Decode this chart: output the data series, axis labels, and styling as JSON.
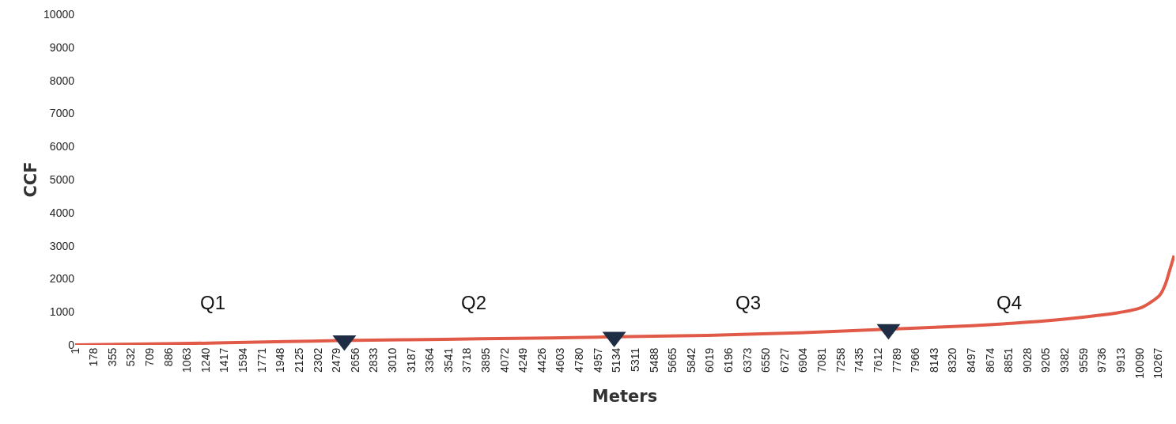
{
  "chart_data": {
    "type": "line",
    "xlabel": "Meters",
    "ylabel": "CCF",
    "series": [
      {
        "color": "#e05a47",
        "x": [
          1,
          1000,
          2000,
          2500,
          3500,
          4500,
          4950,
          6000,
          7000,
          7550,
          8500,
          9000,
          9500,
          9900,
          10100,
          10200,
          10280,
          10330,
          10370,
          10417
        ],
        "values": [
          0,
          40,
          100,
          130,
          170,
          210,
          235,
          290,
          380,
          455,
          580,
          680,
          820,
          980,
          1120,
          1300,
          1500,
          1800,
          2200,
          2700
        ]
      },
      {
        "type": "scatter",
        "marker": "triangle",
        "color": "#1f2d44",
        "x": [
          2553,
          5110,
          7710
        ],
        "values": [
          130,
          240,
          470
        ]
      }
    ],
    "xlim": [
      1,
      10420
    ],
    "ylim": [
      0,
      10000
    ],
    "xticks": [
      1,
      178,
      355,
      532,
      709,
      886,
      1063,
      1240,
      1417,
      1594,
      1771,
      1948,
      2125,
      2302,
      2479,
      2656,
      2833,
      3010,
      3187,
      3364,
      3541,
      3718,
      3895,
      4072,
      4249,
      4426,
      4603,
      4780,
      4957,
      5134,
      5311,
      5488,
      5665,
      5842,
      6019,
      6196,
      6373,
      6550,
      6727,
      6904,
      7081,
      7258,
      7435,
      7612,
      7789,
      7966,
      8143,
      8320,
      8497,
      8674,
      8851,
      9028,
      9205,
      9382,
      9559,
      9736,
      9913,
      10090,
      10267
    ],
    "yticks": [
      0,
      1000,
      2000,
      3000,
      4000,
      5000,
      6000,
      7000,
      8000,
      9000,
      10000
    ],
    "annotations": [
      "Q1",
      "Q2",
      "Q3",
      "Q4"
    ],
    "legend": false,
    "line_style": "solid",
    "marker": "none"
  }
}
